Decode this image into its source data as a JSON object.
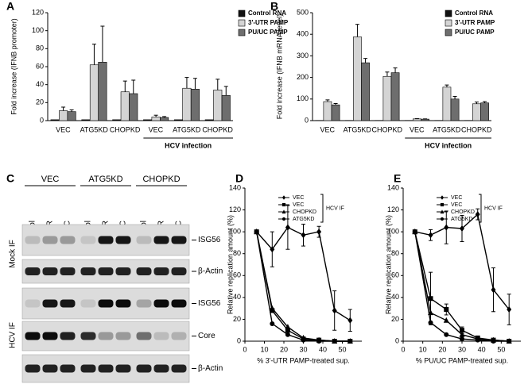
{
  "chart_data": [
    {
      "type": "bar",
      "panel_label": "A",
      "y_label": "Fold increase (IFNB promoter)",
      "categories": [
        "VEC",
        "ATG5KD",
        "CHOPKD",
        "VEC",
        "ATG5KD",
        "CHOPKD"
      ],
      "annotation": "HCV infection",
      "series": [
        {
          "name": "Control RNA",
          "color": "#111111",
          "values": [
            1,
            1,
            1,
            1,
            1,
            1
          ]
        },
        {
          "name": "3'-UTR PAMP",
          "color": "#d4d4d4",
          "values": [
            11,
            62,
            32,
            4,
            36,
            34
          ],
          "errors": [
            4,
            23,
            12,
            2,
            12,
            12
          ]
        },
        {
          "name": "PU/UC PAMP",
          "color": "#6e6e6e",
          "values": [
            10,
            65,
            30,
            3.5,
            35,
            28
          ],
          "errors": [
            2,
            40,
            15,
            1,
            12,
            10
          ]
        }
      ],
      "ylim": [
        0,
        120
      ],
      "yticks": [
        0,
        20,
        40,
        60,
        80,
        100,
        120
      ]
    },
    {
      "type": "bar",
      "panel_label": "B",
      "y_label": "Fold increase (IFNB mRNA level)",
      "categories": [
        "VEC",
        "ATG5KD",
        "CHOPKD",
        "VEC",
        "ATG5KD",
        "CHOPKD"
      ],
      "annotation": "HCV infection",
      "series": [
        {
          "name": "Control RNA",
          "color": "#111111",
          "values": [
            1,
            1,
            1,
            1,
            1,
            1
          ]
        },
        {
          "name": "3'-UTR PAMP",
          "color": "#d4d4d4",
          "values": [
            88,
            388,
            205,
            8,
            155,
            78
          ],
          "errors": [
            8,
            58,
            20,
            1,
            10,
            8
          ]
        },
        {
          "name": "PU/UC PAMP",
          "color": "#6e6e6e",
          "values": [
            73,
            268,
            222,
            7,
            100,
            82
          ],
          "errors": [
            6,
            20,
            22,
            1,
            12,
            6
          ]
        }
      ],
      "ylim": [
        0,
        500
      ],
      "yticks": [
        0,
        100,
        200,
        300,
        400,
        500
      ]
    },
    {
      "type": "line",
      "panel_label": "D",
      "y_label": "Relative replication amount (%)",
      "x_label": "% 3'-UTR PAMP-treated sup.",
      "legend_group_label": "HCV IF",
      "x": [
        6,
        14,
        22,
        30,
        38,
        46,
        54
      ],
      "series": [
        {
          "name": "VEC",
          "marker": "diamond",
          "color": "#000000",
          "values": [
            100,
            84,
            104,
            97,
            100,
            28,
            19
          ],
          "errors": [
            0,
            16,
            20,
            10,
            5,
            18,
            10
          ]
        },
        {
          "name": "VEC",
          "marker": "square",
          "color": "#000000",
          "values": [
            100,
            28,
            10,
            2,
            1,
            0,
            0
          ]
        },
        {
          "name": "CHOPKD",
          "marker": "triangle",
          "color": "#000000",
          "values": [
            100,
            30,
            13,
            3,
            1,
            0,
            0
          ]
        },
        {
          "name": "ATG5KD",
          "marker": "circle",
          "color": "#000000",
          "values": [
            100,
            16,
            6,
            1,
            0,
            0,
            0
          ]
        }
      ],
      "xlim": [
        0,
        60
      ],
      "xticks": [
        0,
        10,
        20,
        30,
        40,
        50
      ],
      "ylim": [
        0,
        140
      ],
      "yticks": [
        0,
        20,
        40,
        60,
        80,
        100,
        120,
        140
      ]
    },
    {
      "type": "line",
      "panel_label": "E",
      "y_label": "Relative replication amount (%)",
      "x_label": "% PU/UC PAMP-treated sup.",
      "legend_group_label": "HCV IF",
      "x": [
        6,
        14,
        22,
        30,
        38,
        46,
        54
      ],
      "series": [
        {
          "name": "VEC",
          "marker": "diamond",
          "color": "#000000",
          "values": [
            100,
            97,
            104,
            103,
            116,
            47,
            29
          ],
          "errors": [
            0,
            5,
            15,
            12,
            5,
            20,
            14
          ]
        },
        {
          "name": "VEC",
          "marker": "square",
          "color": "#000000",
          "values": [
            100,
            39,
            29,
            10,
            3,
            1,
            0
          ],
          "errors": [
            0,
            24,
            5,
            3,
            1,
            0,
            0
          ]
        },
        {
          "name": "CHOPKD",
          "marker": "triangle",
          "color": "#000000",
          "values": [
            100,
            26,
            19,
            6,
            2,
            1,
            0
          ]
        },
        {
          "name": "ATG5KD",
          "marker": "circle",
          "color": "#000000",
          "values": [
            100,
            17,
            6,
            2,
            1,
            0,
            0
          ]
        }
      ],
      "xlim": [
        0,
        60
      ],
      "xticks": [
        0,
        10,
        20,
        30,
        40,
        50
      ],
      "ylim": [
        0,
        140
      ],
      "yticks": [
        0,
        20,
        40,
        60,
        80,
        100,
        120,
        140
      ]
    }
  ],
  "blot": {
    "panel_label": "C",
    "groups": [
      "VEC",
      "ATG5KD",
      "CHOPKD"
    ],
    "lanes": [
      "Control",
      "3'-UTR",
      "PU/UC",
      "Control",
      "3'-UTR",
      "PU/UC",
      "Control",
      "3'-UTR",
      "PU/UC"
    ],
    "sections": [
      {
        "label": "Mock IF",
        "rows": [
          "ISG56",
          "β-Actin"
        ]
      },
      {
        "label": "HCV IF",
        "rows": [
          "ISG56",
          "Core",
          "β-Actin"
        ]
      }
    ]
  }
}
